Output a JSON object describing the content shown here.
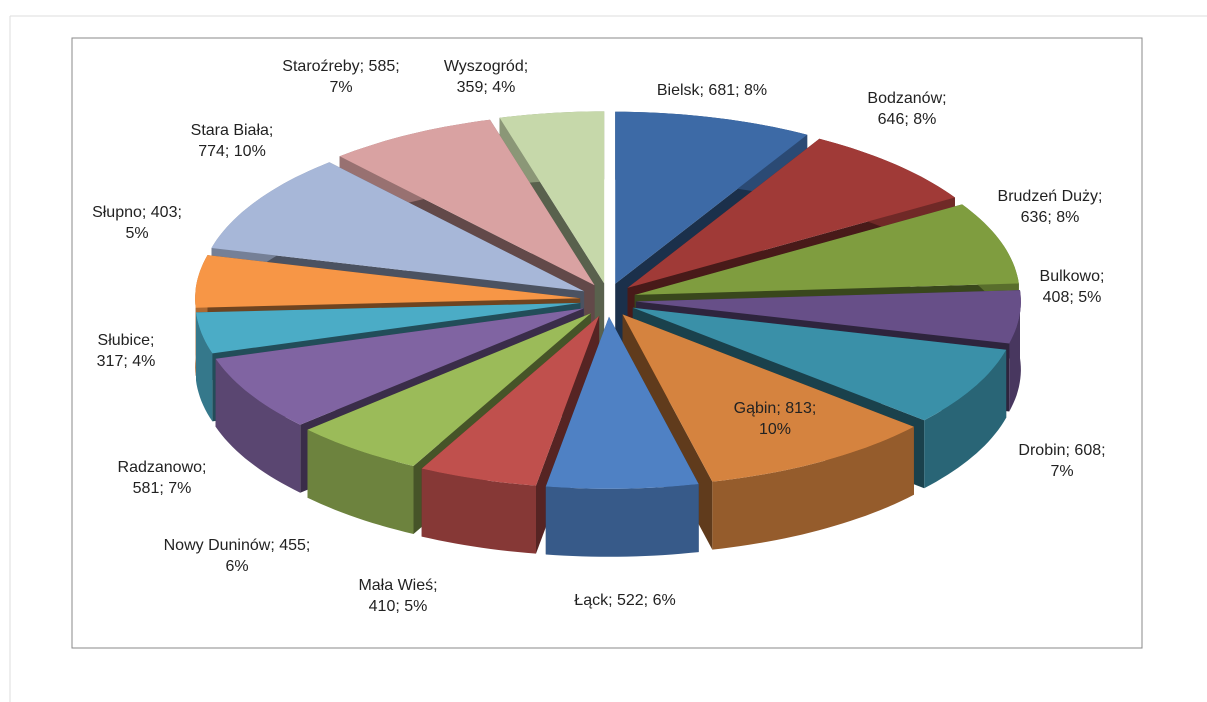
{
  "chart_data": {
    "type": "pie3d",
    "categories": [
      "Bielsk",
      "Bodzanów",
      "Brudzeń Duży",
      "Bulkowo",
      "Drobin",
      "Gąbin",
      "Łąck",
      "Mała Wieś",
      "Nowy Duninów",
      "Radzanowo",
      "Słubice",
      "Słupno",
      "Stara Biała",
      "Staroźreby",
      "Wyszogród"
    ],
    "values": [
      681,
      646,
      636,
      408,
      608,
      813,
      522,
      410,
      455,
      581,
      317,
      403,
      774,
      585,
      359
    ],
    "value_labels": [
      "Bielsk; 681; 8%",
      "Bodzanów; 646; 8%",
      "Brudzeń Duży; 636; 8%",
      "Bulkowo; 408; 5%",
      "Drobin; 608; 7%",
      "Gąbin; 813; 10%",
      "Łąck; 522; 6%",
      "Mała Wieś; 410; 5%",
      "Nowy Duninów; 455; 6%",
      "Radzanowo; 581; 7%",
      "Słubice; 317; 4%",
      "Słupno; 403; 5%",
      "Stara Biała; 774; 10%",
      "Staroźreby; 585; 7%",
      "Wyszogród; 359; 4%"
    ],
    "colors": [
      "#3d6aa6",
      "#a03a37",
      "#7f9d3f",
      "#674f88",
      "#3a90a8",
      "#d5833f",
      "#4f81c4",
      "#c0504d",
      "#9bbb59",
      "#8064a2",
      "#4bacc6",
      "#f79646",
      "#a7b7d8",
      "#d9a2a2",
      "#c6d8aa"
    ]
  }
}
